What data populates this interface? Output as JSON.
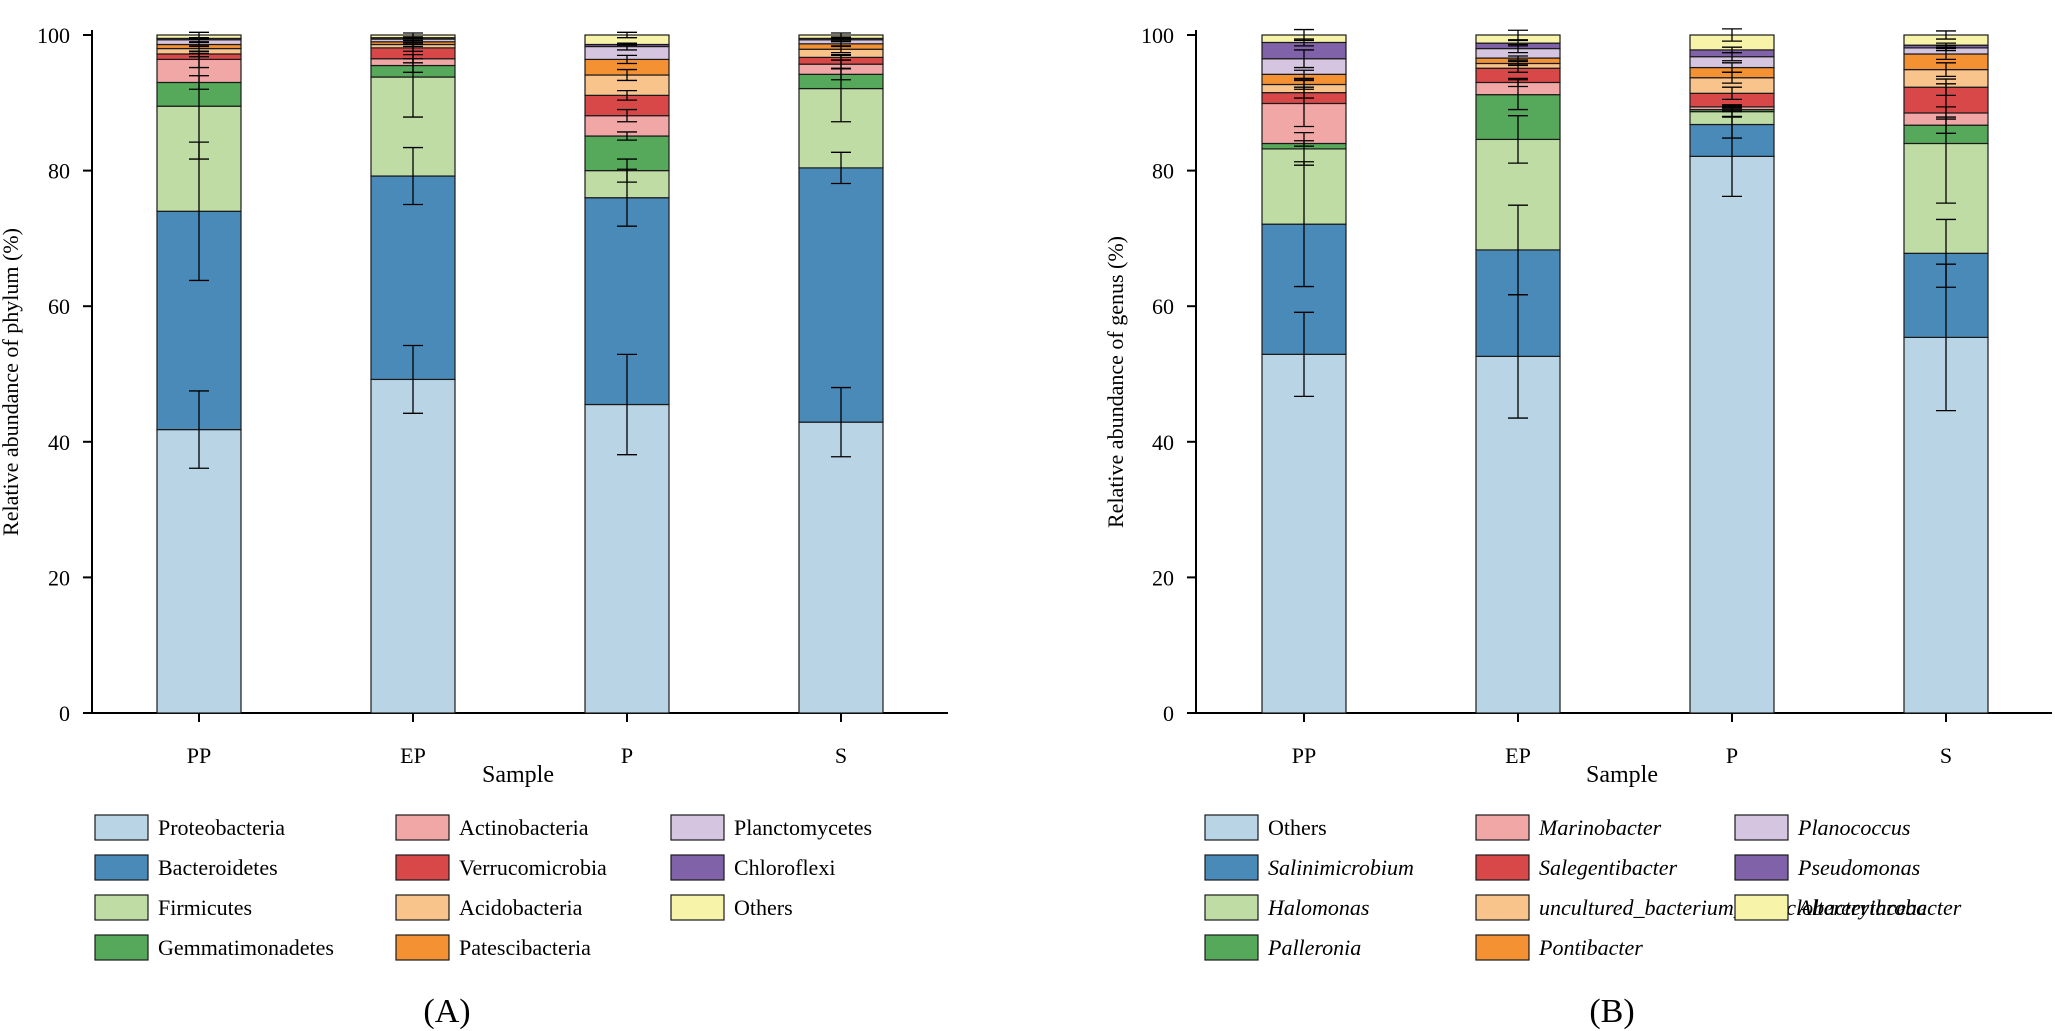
{
  "chart_data": [
    {
      "type": "bar",
      "stacked": true,
      "panel_label": "(A)",
      "title": "",
      "xlabel": "Sample",
      "ylabel": "Relative abundance of phylum (%)",
      "ylim": [
        0,
        100
      ],
      "yticks": [
        0,
        20,
        40,
        60,
        80,
        100
      ],
      "categories": [
        "PP",
        "EP",
        "P",
        "S"
      ],
      "legend_italic": false,
      "series": [
        {
          "name": "Proteobacteria",
          "color": "#b8d4e5",
          "values": [
            41.8,
            49.2,
            45.5,
            42.9
          ],
          "errors": [
            5.7,
            5.0,
            7.4,
            5.1
          ]
        },
        {
          "name": "Bacteroidetes",
          "color": "#4a8ab8",
          "values": [
            32.2,
            30.0,
            30.5,
            37.5
          ],
          "errors": [
            10.2,
            4.2,
            4.2,
            2.3
          ]
        },
        {
          "name": "Firmicutes",
          "color": "#bfdca4",
          "values": [
            15.5,
            14.6,
            4.0,
            11.7
          ],
          "errors": [
            7.8,
            5.9,
            1.7,
            4.9
          ]
        },
        {
          "name": "Gemmatimonadetes",
          "color": "#56a85a",
          "values": [
            3.5,
            1.7,
            5.1,
            2.1
          ],
          "errors": [
            1.0,
            1.0,
            0.6,
            0.8
          ]
        },
        {
          "name": "Actinobacteria",
          "color": "#f2a7a7",
          "values": [
            3.4,
            1.0,
            3.0,
            1.5
          ],
          "errors": [
            1.2,
            0.6,
            0.9,
            0.6
          ]
        },
        {
          "name": "Verrucomicrobia",
          "color": "#d94849",
          "values": [
            0.8,
            1.6,
            3.0,
            1.0
          ],
          "errors": [
            0.4,
            0.5,
            0.7,
            0.4
          ]
        },
        {
          "name": "Acidobacteria",
          "color": "#f8c48b",
          "values": [
            0.8,
            0.5,
            3.0,
            1.2
          ],
          "errors": [
            0.4,
            0.3,
            0.8,
            0.5
          ]
        },
        {
          "name": "Patescibacteria",
          "color": "#f39133",
          "values": [
            0.6,
            0.4,
            2.3,
            0.8
          ],
          "errors": [
            0.3,
            0.2,
            0.6,
            0.4
          ]
        },
        {
          "name": "Planctomycetes",
          "color": "#d6c5e0",
          "values": [
            0.7,
            0.4,
            1.9,
            0.6
          ],
          "errors": [
            0.3,
            0.2,
            0.5,
            0.3
          ]
        },
        {
          "name": "Chloroflexi",
          "color": "#8062a9",
          "values": [
            0.2,
            0.2,
            0.3,
            0.2
          ],
          "errors": [
            0.1,
            0.1,
            0.1,
            0.1
          ]
        },
        {
          "name": "Others",
          "color": "#f7f3a8",
          "values": [
            0.5,
            0.4,
            1.4,
            0.5
          ],
          "errors": [
            0.4,
            0.3,
            0.4,
            0.3
          ]
        }
      ]
    },
    {
      "type": "bar",
      "stacked": true,
      "panel_label": "(B)",
      "title": "",
      "xlabel": "Sample",
      "ylabel": "Relative abundance of genus (%)",
      "ylim": [
        0,
        100
      ],
      "yticks": [
        0,
        20,
        40,
        60,
        80,
        100
      ],
      "categories": [
        "PP",
        "EP",
        "P",
        "S"
      ],
      "legend_italic": true,
      "legend_plain_names": [
        "Others"
      ],
      "series": [
        {
          "name": "Others",
          "color": "#b8d4e5",
          "values": [
            52.9,
            52.6,
            82.1,
            55.4
          ],
          "errors": [
            6.2,
            9.1,
            5.9,
            10.8
          ]
        },
        {
          "name": "Salinimicrobium",
          "color": "#4a8ab8",
          "values": [
            19.2,
            15.7,
            4.7,
            12.4
          ],
          "errors": [
            9.2,
            6.6,
            2.0,
            5.0
          ]
        },
        {
          "name": "Halomonas",
          "color": "#bfdca4",
          "values": [
            11.1,
            16.3,
            1.9,
            16.2
          ],
          "errors": [
            2.4,
            3.5,
            0.8,
            8.8
          ]
        },
        {
          "name": "Palleronia",
          "color": "#56a85a",
          "values": [
            0.8,
            6.6,
            0.3,
            2.7
          ],
          "errors": [
            0.4,
            2.2,
            0.3,
            1.2
          ]
        },
        {
          "name": "Marinobacter",
          "color": "#f2a7a7",
          "values": [
            5.9,
            1.8,
            0.4,
            1.8
          ],
          "errors": [
            3.4,
            0.6,
            0.3,
            0.9
          ]
        },
        {
          "name": "Salegentibacter",
          "color": "#d94849",
          "values": [
            1.6,
            2.1,
            2.0,
            3.8
          ],
          "errors": [
            0.8,
            0.6,
            0.9,
            1.2
          ]
        },
        {
          "name": "uncultured_bacterium_f_Cyclobacteriaceae",
          "color": "#f8c48b",
          "values": [
            1.2,
            0.7,
            2.3,
            2.6
          ],
          "errors": [
            0.7,
            0.3,
            0.8,
            1.0
          ]
        },
        {
          "name": "Pontibacter",
          "color": "#f39133",
          "values": [
            1.5,
            0.8,
            1.5,
            2.3
          ],
          "errors": [
            0.6,
            0.3,
            0.7,
            0.8
          ]
        },
        {
          "name": "Planococcus",
          "color": "#d6c5e0",
          "values": [
            2.3,
            1.4,
            1.6,
            0.9
          ],
          "errors": [
            1.3,
            0.6,
            0.6,
            0.4
          ]
        },
        {
          "name": "Pseudomonas",
          "color": "#8062a9",
          "values": [
            2.4,
            0.8,
            1.0,
            0.4
          ],
          "errors": [
            0.5,
            0.4,
            0.4,
            0.3
          ]
        },
        {
          "name": "Altererythrobacter",
          "color": "#f7f3a8",
          "values": [
            1.1,
            1.2,
            2.2,
            1.5
          ],
          "errors": [
            0.8,
            0.7,
            0.9,
            0.6
          ]
        }
      ]
    }
  ]
}
